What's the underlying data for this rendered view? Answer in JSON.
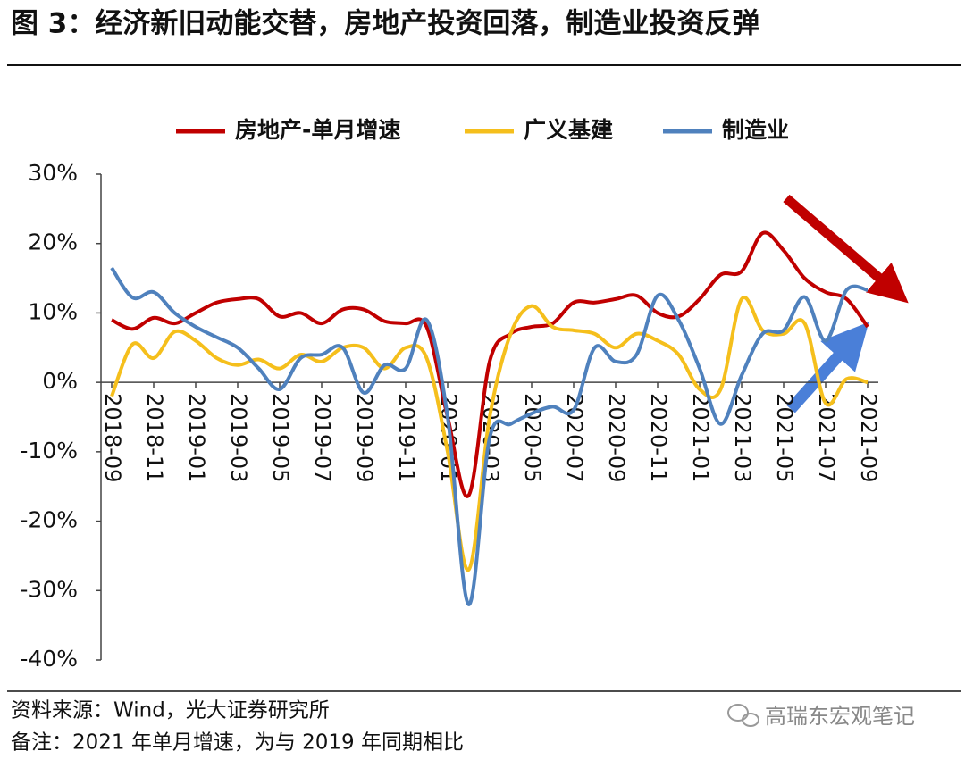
{
  "chart_data": {
    "type": "line",
    "title": "图 3：经济新旧动能交替，房地产投资回落，制造业投资反弹",
    "source": "资料来源：Wind，光大证券研究所",
    "note": "备注：2021 年单月增速，为与 2019 年同期相比",
    "watermark": "高瑞东宏观笔记",
    "categories": [
      "2018-09",
      null,
      "2018-11",
      null,
      "2019-01",
      null,
      "2019-03",
      null,
      "2019-05",
      null,
      "2019-07",
      null,
      "2019-09",
      null,
      "2019-11",
      null,
      "2020-01",
      null,
      "2020-03",
      null,
      "2020-05",
      null,
      "2020-07",
      null,
      "2020-09",
      null,
      "2020-11",
      null,
      "2021-01",
      null,
      "2021-03",
      null,
      "2021-05",
      null,
      "2021-07",
      null,
      "2021-09"
    ],
    "series": [
      {
        "name": "房地产-单月增速",
        "color": "#c00000",
        "values": [
          9,
          7.7,
          9.3,
          8.5,
          10,
          11.5,
          12,
          12,
          9.5,
          10,
          8.5,
          10.5,
          10.5,
          8.8,
          8.5,
          8,
          -5,
          -16.3,
          3,
          7,
          8,
          8.5,
          11.5,
          11.5,
          12,
          12.5,
          10,
          9.5,
          12,
          15.5,
          16,
          21.5,
          19,
          15,
          13,
          12,
          8
        ]
      },
      {
        "name": "广义基建",
        "color": "#f5bf1c",
        "values": [
          -2,
          5.5,
          3.5,
          7.3,
          6,
          3.5,
          2.5,
          3.3,
          2,
          4,
          3,
          5,
          5,
          2,
          5,
          3.5,
          -10,
          -27,
          -5,
          7,
          11,
          8,
          7.5,
          7,
          5,
          7,
          6,
          4,
          -1,
          -1,
          12,
          7.5,
          7,
          8.5,
          -3,
          0.5,
          0
        ]
      },
      {
        "name": "制造业",
        "color": "#4f81bd",
        "values": [
          16.5,
          12.2,
          13,
          10,
          8,
          6.5,
          5,
          2,
          -1,
          3.5,
          4,
          5,
          -1.5,
          2.5,
          2,
          9,
          -5,
          -32,
          -8,
          -6,
          -4.5,
          -3.5,
          -4,
          5,
          3,
          4,
          12.5,
          9,
          2,
          -6,
          1,
          7,
          7.5,
          12.3,
          6,
          13.3,
          13.3
        ]
      }
    ],
    "ylim": [
      -40,
      30
    ],
    "yticks": [
      {
        "value": -40,
        "label": "-40%"
      },
      {
        "value": -30,
        "label": "-30%"
      },
      {
        "value": -20,
        "label": "-20%"
      },
      {
        "value": -10,
        "label": "-10%"
      },
      {
        "value": 0,
        "label": "0%"
      },
      {
        "value": 10,
        "label": "10%"
      },
      {
        "value": 20,
        "label": "20%"
      },
      {
        "value": 30,
        "label": "30%"
      }
    ]
  }
}
